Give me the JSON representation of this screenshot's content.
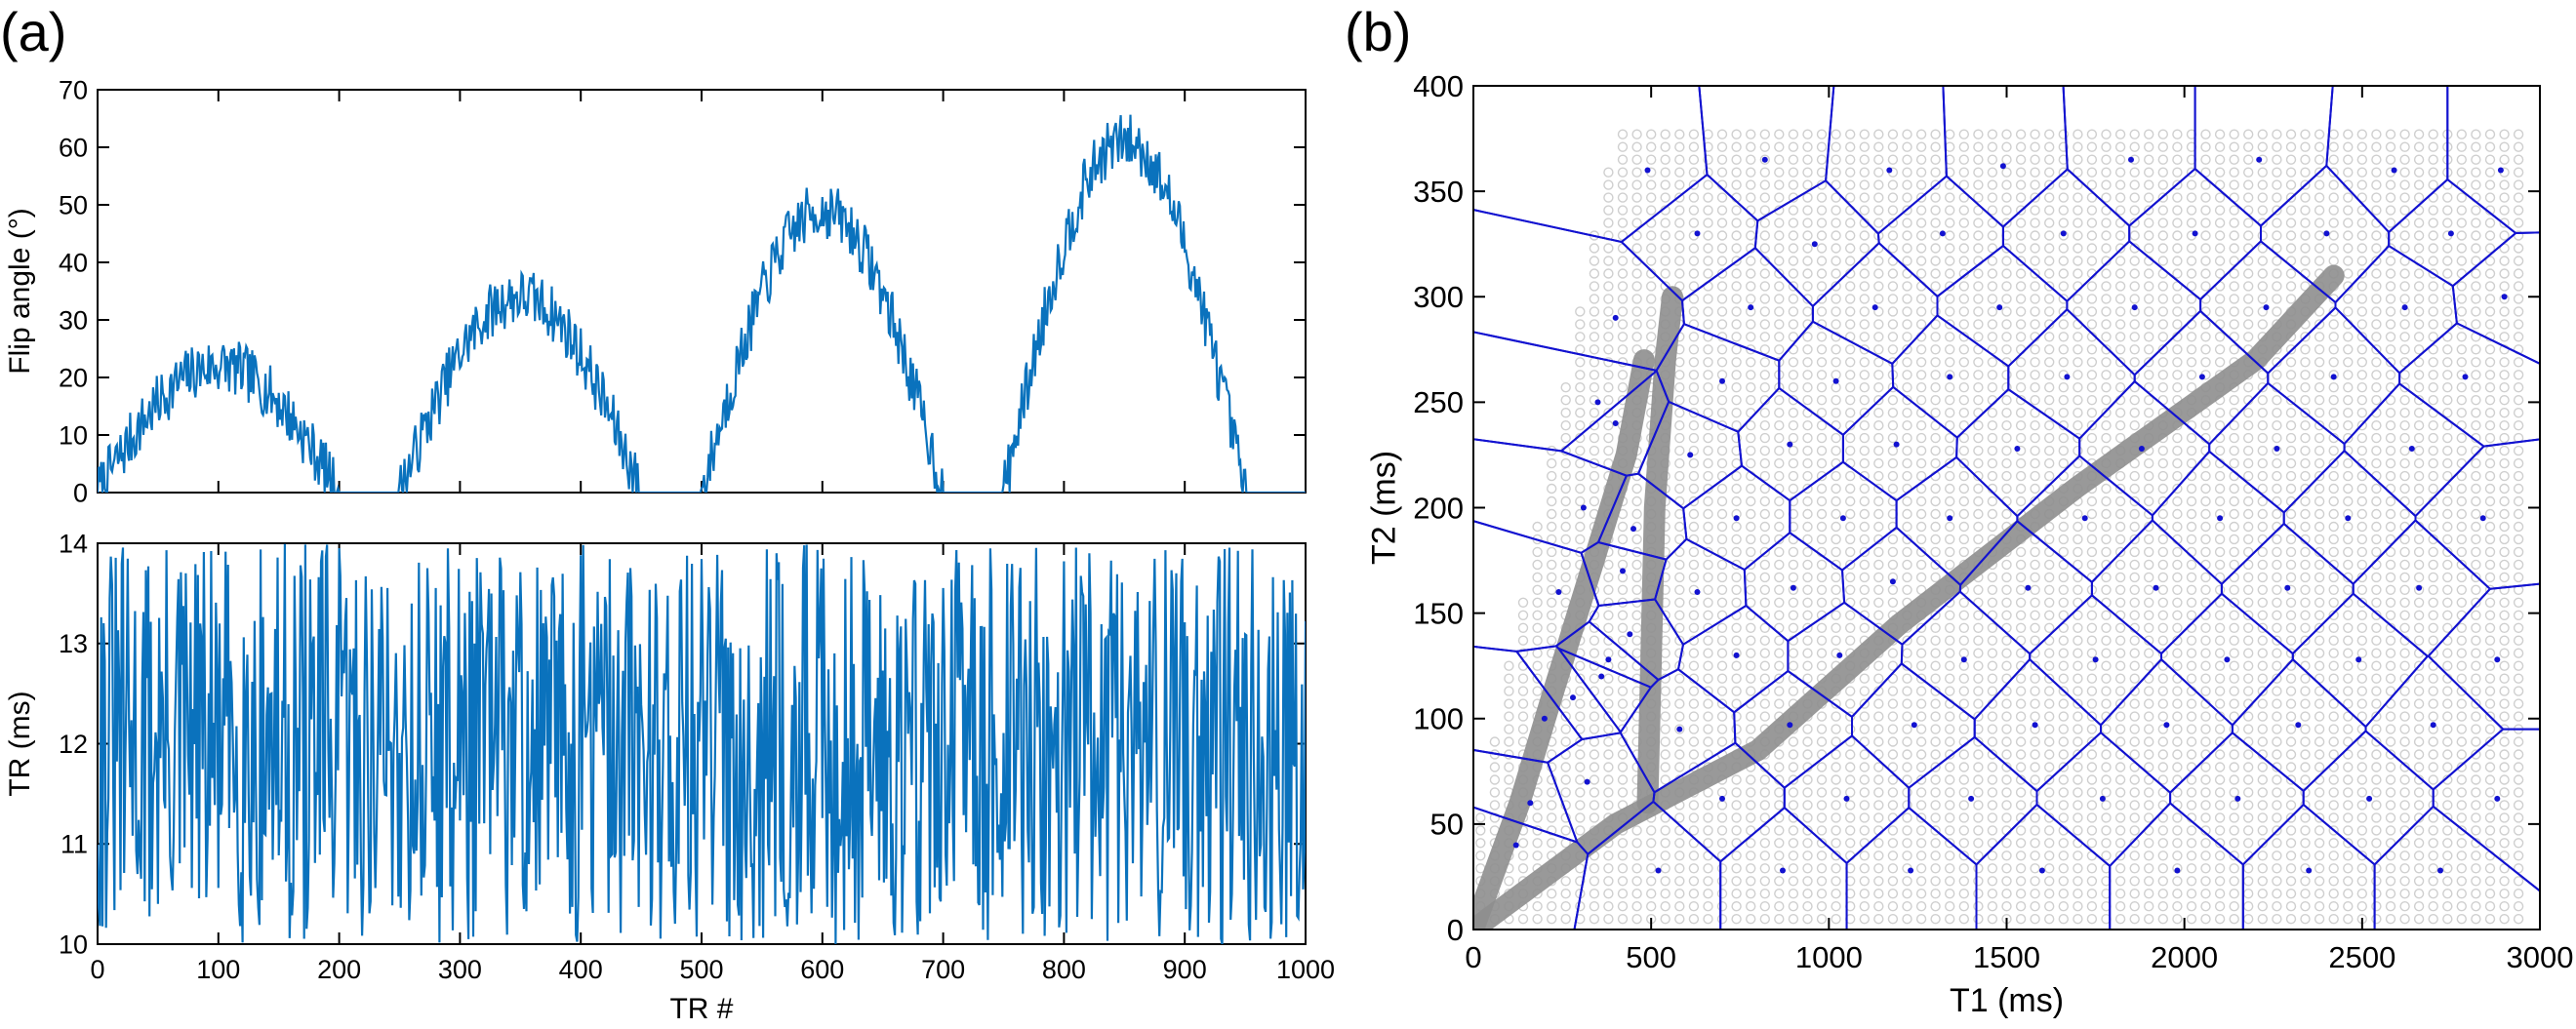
{
  "panel_labels": {
    "a": "(a)",
    "b": "(b)"
  },
  "colors": {
    "series": "#0a72bd",
    "voronoi": "#1212d0",
    "centroid": "#1212d0",
    "grid_point": "#cfcfcf",
    "trajectory": "#8e8e8e",
    "axis": "#000000"
  },
  "chart_data": [
    {
      "id": "flip",
      "type": "line",
      "panel": "(a)",
      "title": "",
      "xlabel": "",
      "ylabel": "Flip angle (°)",
      "xlim": [
        0,
        1000
      ],
      "ylim": [
        0,
        70
      ],
      "xticks": [
        0,
        100,
        200,
        300,
        400,
        500,
        600,
        700,
        800,
        900,
        1000
      ],
      "yticks": [
        0,
        10,
        20,
        30,
        40,
        50,
        60,
        70
      ],
      "show_xticklabels": false,
      "grid": false,
      "series": [
        {
          "lobes": [
            {
              "start": 0,
              "end": 200,
              "peak": 22,
              "peak_at": 100
            },
            {
              "start": 250,
              "end": 450,
              "peak": 34,
              "peak_at": 350
            },
            {
              "start": 500,
              "end": 700,
              "peak": 49,
              "peak_at": 600
            },
            {
              "start": 750,
              "end": 950,
              "peak": 61,
              "peak_at": 850
            }
          ],
          "noise_amplitude": 5,
          "n_points": 1000
        }
      ]
    },
    {
      "id": "tr",
      "type": "line",
      "panel": "(a)",
      "title": "",
      "xlabel": "TR #",
      "ylabel": "TR (ms)",
      "xlim": [
        0,
        1000
      ],
      "ylim": [
        10,
        14
      ],
      "xticks": [
        0,
        100,
        200,
        300,
        400,
        500,
        600,
        700,
        800,
        900,
        1000
      ],
      "yticks": [
        10,
        11,
        12,
        13,
        14
      ],
      "show_xticklabels": true,
      "grid": false,
      "series": [
        {
          "distribution": "uniform",
          "min": 10,
          "max": 14,
          "n_points": 1000
        }
      ]
    },
    {
      "id": "t1t2",
      "type": "scatter",
      "panel": "(b)",
      "title": "",
      "xlabel": "T1 (ms)",
      "ylabel": "T2 (ms)",
      "xlim": [
        0,
        3000
      ],
      "ylim": [
        0,
        400
      ],
      "xticks": [
        0,
        500,
        1000,
        1500,
        2000,
        2500,
        3000
      ],
      "yticks": [
        0,
        50,
        100,
        150,
        200,
        250,
        300,
        350,
        400
      ],
      "grid": false,
      "dictionary_grid": {
        "t1_min": 0,
        "t1_max": 2950,
        "t2_min": 0,
        "t2_max": 380
      },
      "trajectories": [
        [
          [
            0,
            0
          ],
          [
            130,
            60
          ],
          [
            220,
            110
          ],
          [
            330,
            170
          ],
          [
            430,
            225
          ],
          [
            480,
            270
          ]
        ],
        [
          [
            490,
            60
          ],
          [
            500,
            130
          ],
          [
            510,
            200
          ],
          [
            540,
            270
          ],
          [
            560,
            300
          ]
        ],
        [
          [
            0,
            0
          ],
          [
            400,
            50
          ],
          [
            800,
            85
          ],
          [
            1200,
            145
          ],
          [
            1700,
            210
          ],
          [
            2200,
            270
          ],
          [
            2420,
            310
          ]
        ]
      ],
      "centroids": [
        [
          490,
          360
        ],
        [
          820,
          365
        ],
        [
          1170,
          360
        ],
        [
          1490,
          362
        ],
        [
          1850,
          365
        ],
        [
          2210,
          365
        ],
        [
          2590,
          360
        ],
        [
          2890,
          360
        ],
        [
          630,
          330
        ],
        [
          960,
          325
        ],
        [
          1320,
          330
        ],
        [
          1660,
          330
        ],
        [
          2030,
          330
        ],
        [
          2400,
          330
        ],
        [
          2750,
          330
        ],
        [
          400,
          290
        ],
        [
          780,
          295
        ],
        [
          1130,
          295
        ],
        [
          1480,
          295
        ],
        [
          1860,
          295
        ],
        [
          2230,
          295
        ],
        [
          2620,
          295
        ],
        [
          2900,
          300
        ],
        [
          700,
          260
        ],
        [
          1020,
          260
        ],
        [
          1340,
          262
        ],
        [
          1670,
          262
        ],
        [
          2050,
          262
        ],
        [
          2420,
          262
        ],
        [
          2790,
          262
        ],
        [
          610,
          225
        ],
        [
          890,
          230
        ],
        [
          1190,
          230
        ],
        [
          1530,
          228
        ],
        [
          1880,
          228
        ],
        [
          2260,
          228
        ],
        [
          2640,
          228
        ],
        [
          740,
          195
        ],
        [
          1040,
          195
        ],
        [
          1340,
          195
        ],
        [
          1720,
          195
        ],
        [
          2100,
          195
        ],
        [
          2460,
          195
        ],
        [
          2840,
          195
        ],
        [
          630,
          160
        ],
        [
          900,
          162
        ],
        [
          1180,
          165
        ],
        [
          1560,
          162
        ],
        [
          1920,
          162
        ],
        [
          2290,
          162
        ],
        [
          2660,
          162
        ],
        [
          380,
          128
        ],
        [
          740,
          130
        ],
        [
          1030,
          130
        ],
        [
          1380,
          128
        ],
        [
          1750,
          128
        ],
        [
          2120,
          128
        ],
        [
          2490,
          128
        ],
        [
          2880,
          128
        ],
        [
          580,
          95
        ],
        [
          890,
          97
        ],
        [
          1240,
          97
        ],
        [
          1580,
          97
        ],
        [
          1950,
          97
        ],
        [
          2320,
          97
        ],
        [
          2700,
          97
        ],
        [
          700,
          62
        ],
        [
          1050,
          62
        ],
        [
          1400,
          62
        ],
        [
          1770,
          62
        ],
        [
          2150,
          62
        ],
        [
          2520,
          62
        ],
        [
          2880,
          62
        ],
        [
          520,
          28
        ],
        [
          870,
          28
        ],
        [
          1230,
          28
        ],
        [
          1600,
          28
        ],
        [
          1980,
          28
        ],
        [
          2350,
          28
        ],
        [
          2720,
          28
        ],
        [
          240,
          160
        ],
        [
          280,
          110
        ],
        [
          320,
          70
        ],
        [
          160,
          60
        ],
        [
          440,
          140
        ],
        [
          450,
          190
        ],
        [
          400,
          240
        ],
        [
          310,
          200
        ],
        [
          350,
          250
        ],
        [
          420,
          170
        ],
        [
          360,
          120
        ],
        [
          200,
          100
        ],
        [
          120,
          40
        ]
      ]
    }
  ]
}
